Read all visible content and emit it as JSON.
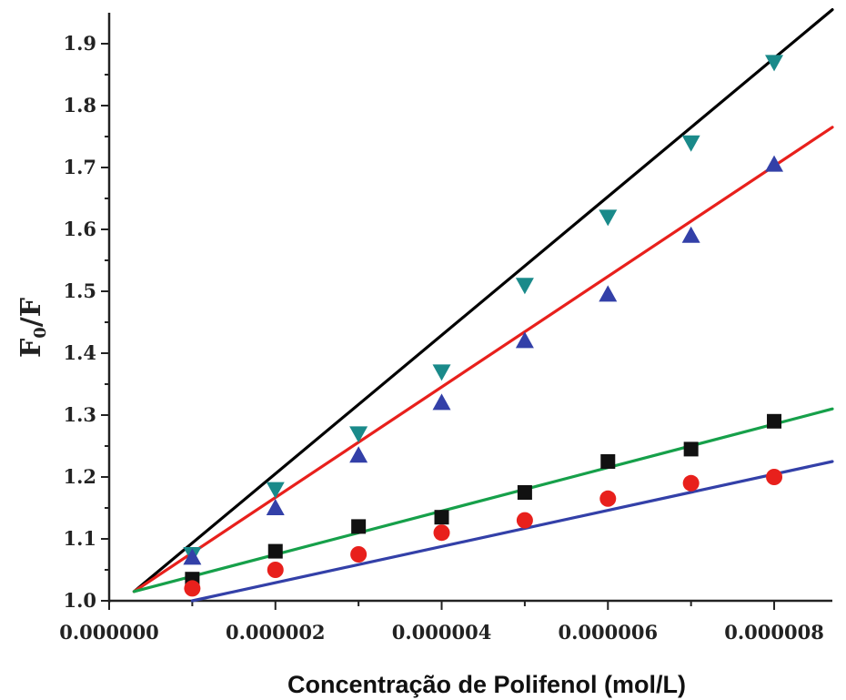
{
  "chart_data": {
    "type": "scatter",
    "title": "",
    "xlabel": "Concentração de Polifenol (mol/L)",
    "ylabel_main": "F",
    "ylabel_sub": "0",
    "ylabel_rest": "/F",
    "xlim": [
      0.0,
      8.7e-06
    ],
    "ylim": [
      1.0,
      1.95
    ],
    "x_ticks": [
      0.0,
      2e-06,
      4e-06,
      6e-06,
      8e-06
    ],
    "x_tick_labels": [
      "0.000000",
      "0.000002",
      "0.000004",
      "0.000006",
      "0.000008"
    ],
    "y_ticks": [
      1.0,
      1.1,
      1.2,
      1.3,
      1.4,
      1.5,
      1.6,
      1.7,
      1.8,
      1.9
    ],
    "y_tick_labels": [
      "1.0",
      "1.1",
      "1.2",
      "1.3",
      "1.4",
      "1.5",
      "1.6",
      "1.7",
      "1.8",
      "1.9"
    ],
    "grid": false,
    "series": [
      {
        "marker": "triangle-down",
        "color": "#1a8a8a",
        "x": [
          1e-06,
          2e-06,
          3e-06,
          4e-06,
          5e-06,
          6e-06,
          7e-06,
          8e-06
        ],
        "y": [
          1.075,
          1.18,
          1.27,
          1.37,
          1.51,
          1.62,
          1.74,
          1.87
        ],
        "fit": {
          "color": "#000000",
          "x": [
            3e-07,
            8.7e-06
          ],
          "y": [
            1.015,
            1.955
          ]
        }
      },
      {
        "marker": "triangle-up",
        "color": "#3340a8",
        "x": [
          1e-06,
          2e-06,
          3e-06,
          4e-06,
          5e-06,
          6e-06,
          7e-06,
          8e-06
        ],
        "y": [
          1.07,
          1.15,
          1.235,
          1.32,
          1.42,
          1.495,
          1.59,
          1.705
        ],
        "fit": {
          "color": "#e8201c",
          "x": [
            3e-07,
            8.7e-06
          ],
          "y": [
            1.015,
            1.765
          ]
        }
      },
      {
        "marker": "square",
        "color": "#111111",
        "x": [
          1e-06,
          2e-06,
          3e-06,
          4e-06,
          5e-06,
          6e-06,
          7e-06,
          8e-06
        ],
        "y": [
          1.035,
          1.08,
          1.12,
          1.135,
          1.175,
          1.225,
          1.245,
          1.29
        ],
        "fit": {
          "color": "#16a04a",
          "x": [
            3e-07,
            8.7e-06
          ],
          "y": [
            1.015,
            1.31
          ]
        }
      },
      {
        "marker": "circle",
        "color": "#e8201c",
        "x": [
          1e-06,
          2e-06,
          3e-06,
          4e-06,
          5e-06,
          6e-06,
          7e-06,
          8e-06
        ],
        "y": [
          1.02,
          1.05,
          1.075,
          1.11,
          1.13,
          1.165,
          1.19,
          1.2
        ],
        "fit": {
          "color": "#3340a8",
          "x": [
            1e-06,
            8.7e-06
          ],
          "y": [
            1.0,
            1.225
          ]
        }
      }
    ]
  }
}
